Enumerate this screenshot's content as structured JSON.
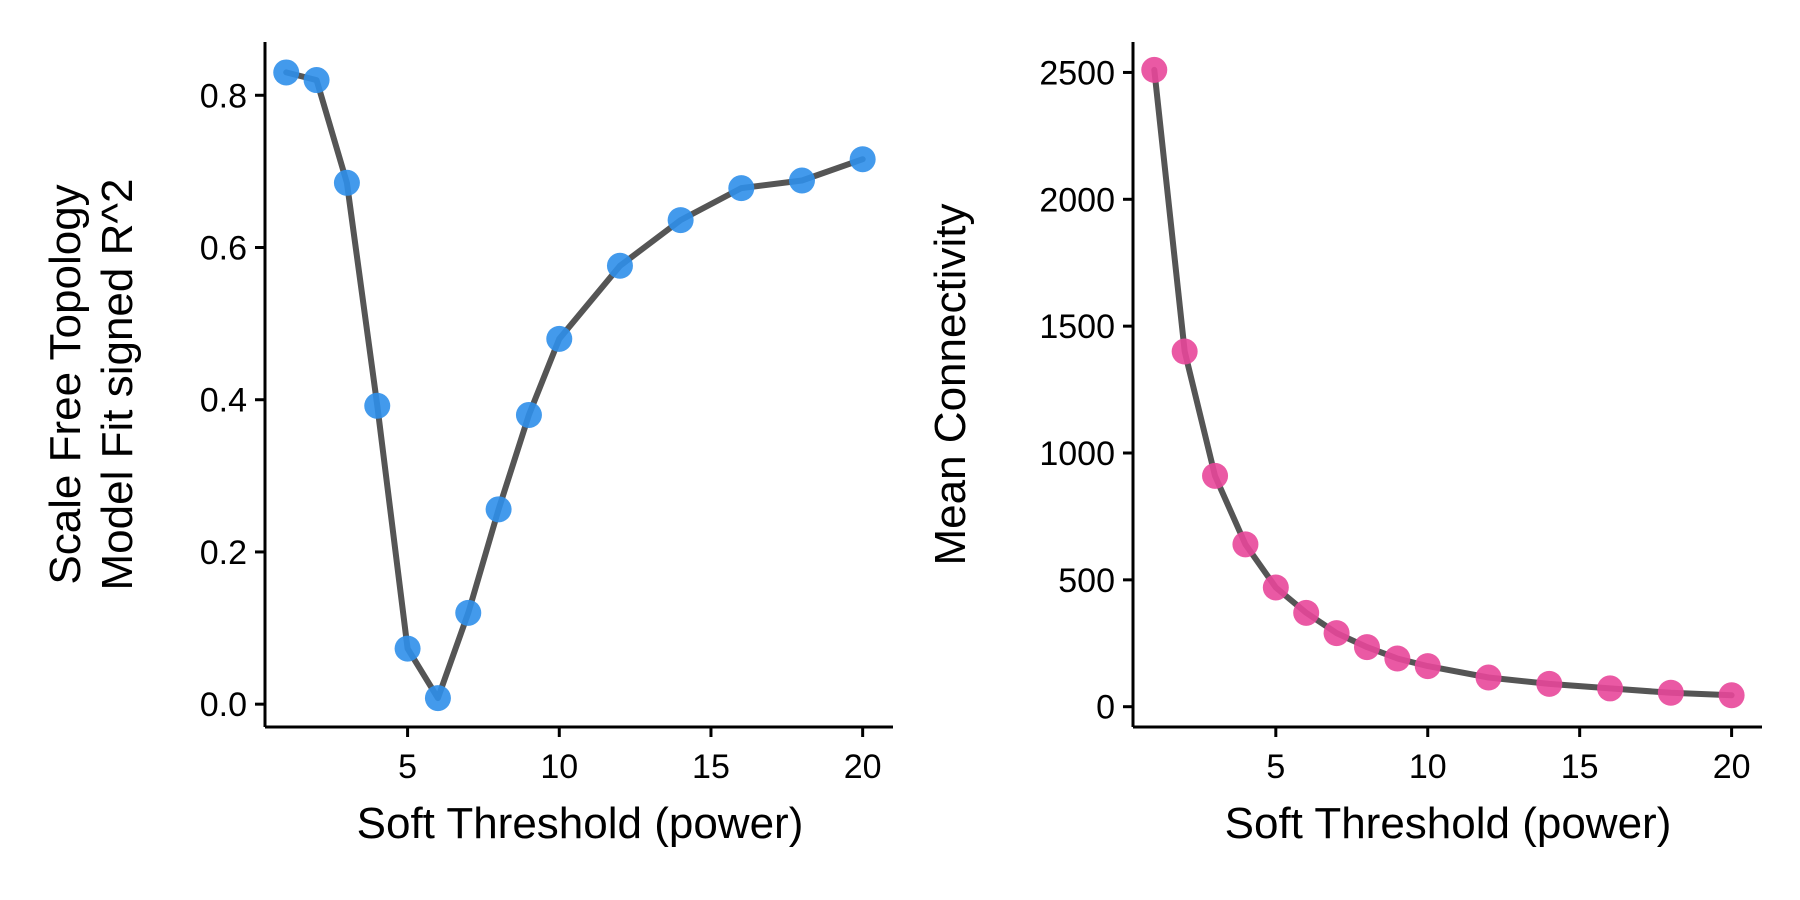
{
  "chart_data": [
    {
      "type": "line",
      "xlabel": "Soft Threshold (power)",
      "ylabel_lines": [
        "Scale Free Topology",
        "Model Fit signed R^2"
      ],
      "xlim": [
        0.3,
        21
      ],
      "ylim": [
        -0.03,
        0.87
      ],
      "xticks": [
        5,
        10,
        15,
        20
      ],
      "yticks": [
        0.0,
        0.2,
        0.4,
        0.6,
        0.8
      ],
      "ytick_labels": [
        "0.0",
        "0.2",
        "0.4",
        "0.6",
        "0.8"
      ],
      "xtick_labels": [
        "5",
        "10",
        "15",
        "20"
      ],
      "line_color": "#555555",
      "point_color": "#2F8FEA",
      "series": [
        {
          "x": [
            1,
            2,
            3,
            4,
            5,
            6,
            7,
            8,
            9,
            10,
            12,
            14,
            16,
            18,
            20
          ],
          "y": [
            0.83,
            0.82,
            0.685,
            0.392,
            0.073,
            0.008,
            0.12,
            0.256,
            0.38,
            0.48,
            0.576,
            0.636,
            0.678,
            0.688,
            0.716
          ]
        }
      ]
    },
    {
      "type": "line",
      "xlabel": "Soft Threshold (power)",
      "ylabel_lines": [
        "Mean Connectivity"
      ],
      "xlim": [
        0.3,
        21
      ],
      "ylim": [
        -80,
        2620
      ],
      "xticks": [
        5,
        10,
        15,
        20
      ],
      "yticks": [
        0,
        500,
        1000,
        1500,
        2000,
        2500
      ],
      "ytick_labels": [
        "0",
        "500",
        "1000",
        "1500",
        "2000",
        "2500"
      ],
      "xtick_labels": [
        "5",
        "10",
        "15",
        "20"
      ],
      "line_color": "#555555",
      "point_color": "#E8479A",
      "series": [
        {
          "x": [
            1,
            2,
            3,
            4,
            5,
            6,
            7,
            8,
            9,
            10,
            12,
            14,
            16,
            18,
            20
          ],
          "y": [
            2510,
            1400,
            910,
            640,
            470,
            370,
            290,
            235,
            190,
            160,
            115,
            90,
            72,
            55,
            45
          ]
        }
      ]
    }
  ]
}
